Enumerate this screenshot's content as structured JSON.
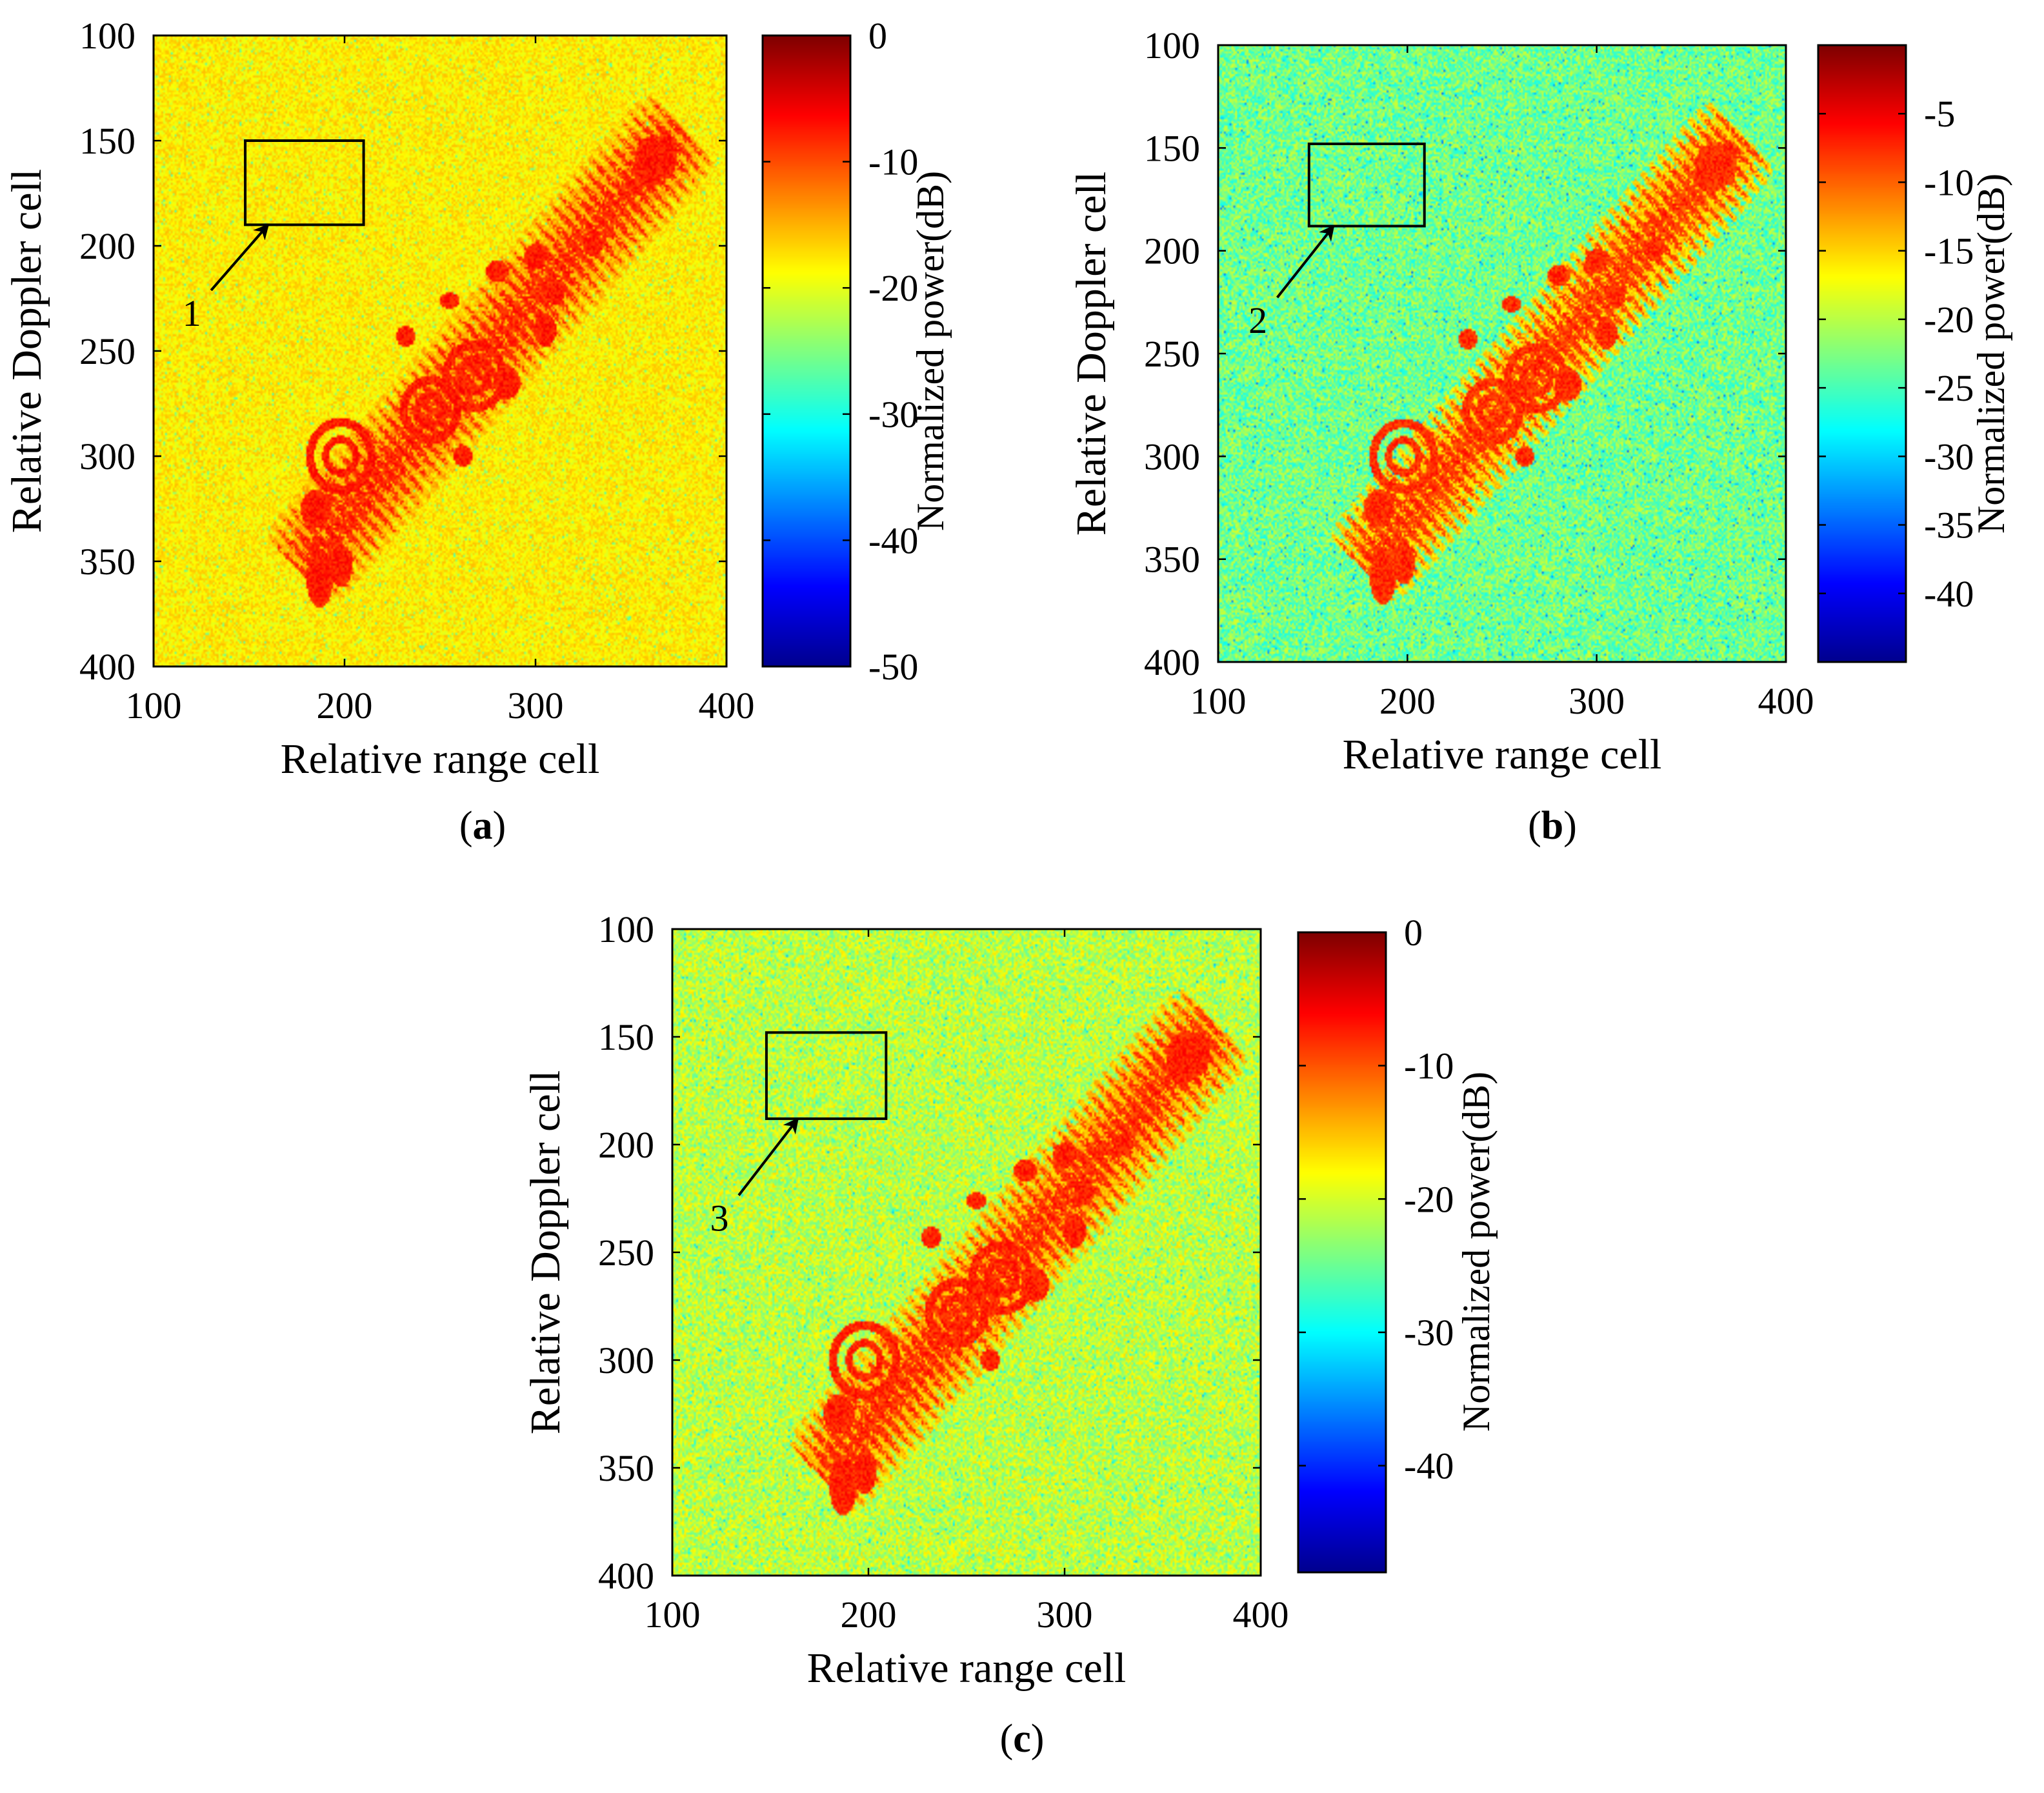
{
  "colormap": [
    "#00008f",
    "#0000ff",
    "#00ffff",
    "#ffff00",
    "#ff0000",
    "#800000"
  ],
  "chart_data": [
    {
      "type": "heatmap",
      "panel_label": "a",
      "xlabel": "Relative range cell",
      "ylabel": "Relative Doppler cell",
      "xlim": [
        100,
        400
      ],
      "ylim": [
        100,
        400
      ],
      "y_reversed": true,
      "xticks": [
        100,
        200,
        300,
        400
      ],
      "yticks": [
        100,
        150,
        200,
        250,
        300,
        350,
        400
      ],
      "colorbar": {
        "label": "Normalized power(dB)",
        "range": [
          -50,
          0
        ],
        "ticks": [
          0,
          -10,
          -20,
          -30,
          -40,
          -50
        ]
      },
      "background_db": -18,
      "region": {
        "x": [
          148,
          210
        ],
        "y": [
          150,
          190
        ]
      },
      "arrow": {
        "label": "1",
        "from": [
          120,
          238
        ],
        "to": [
          160,
          190
        ]
      }
    },
    {
      "type": "heatmap",
      "panel_label": "b",
      "xlabel": "Relative range cell",
      "ylabel": "Relative Doppler cell",
      "xlim": [
        100,
        400
      ],
      "ylim": [
        100,
        400
      ],
      "y_reversed": true,
      "xticks": [
        100,
        200,
        300,
        400
      ],
      "yticks": [
        100,
        150,
        200,
        250,
        300,
        350,
        400
      ],
      "colorbar": {
        "label": "Normalized power(dB)",
        "range": [
          -45,
          0
        ],
        "ticks": [
          -5,
          -10,
          -15,
          -20,
          -25,
          -30,
          -35,
          -40
        ]
      },
      "background_db": -23,
      "region": {
        "x": [
          148,
          209
        ],
        "y": [
          148,
          188
        ]
      },
      "arrow": {
        "label": "2",
        "from": [
          121,
          240
        ],
        "to": [
          161,
          188
        ]
      }
    },
    {
      "type": "heatmap",
      "panel_label": "c",
      "xlabel": "Relative range cell",
      "ylabel": "Relative Doppler cell",
      "xlim": [
        100,
        400
      ],
      "ylim": [
        100,
        400
      ],
      "y_reversed": true,
      "xticks": [
        100,
        200,
        300,
        400
      ],
      "yticks": [
        100,
        150,
        200,
        250,
        300,
        350,
        400
      ],
      "colorbar": {
        "label": "Normalized power(dB)",
        "range": [
          -48,
          0
        ],
        "ticks": [
          0,
          -10,
          -20,
          -30,
          -40
        ]
      },
      "background_db": -21,
      "region": {
        "x": [
          148,
          209
        ],
        "y": [
          148,
          188
        ]
      },
      "arrow": {
        "label": "3",
        "from": [
          124,
          240
        ],
        "to": [
          164,
          188
        ]
      }
    }
  ],
  "target": {
    "body_band": {
      "start": [
        185,
        345
      ],
      "end": [
        368,
        153
      ],
      "half_width": 26
    },
    "rings": [
      {
        "x": 198,
        "y": 300,
        "r": 16
      },
      {
        "x": 245,
        "y": 278,
        "r": 14
      },
      {
        "x": 268,
        "y": 262,
        "r": 15
      }
    ],
    "blobs": [
      {
        "x": 185,
        "y": 325,
        "w": 8,
        "h": 9
      },
      {
        "x": 187,
        "y": 358,
        "w": 7,
        "h": 14
      },
      {
        "x": 198,
        "y": 352,
        "w": 6,
        "h": 10
      },
      {
        "x": 232,
        "y": 243,
        "w": 5,
        "h": 5
      },
      {
        "x": 255,
        "y": 226,
        "w": 5,
        "h": 4
      },
      {
        "x": 262,
        "y": 300,
        "w": 5,
        "h": 5
      },
      {
        "x": 280,
        "y": 212,
        "w": 6,
        "h": 5
      },
      {
        "x": 285,
        "y": 265,
        "w": 7,
        "h": 8
      },
      {
        "x": 300,
        "y": 205,
        "w": 6,
        "h": 6
      },
      {
        "x": 305,
        "y": 240,
        "w": 6,
        "h": 8
      },
      {
        "x": 310,
        "y": 222,
        "w": 5,
        "h": 6
      },
      {
        "x": 330,
        "y": 200,
        "w": 5,
        "h": 5
      },
      {
        "x": 360,
        "y": 160,
        "w": 8,
        "h": 12
      },
      {
        "x": 368,
        "y": 158,
        "w": 6,
        "h": 10
      }
    ]
  }
}
